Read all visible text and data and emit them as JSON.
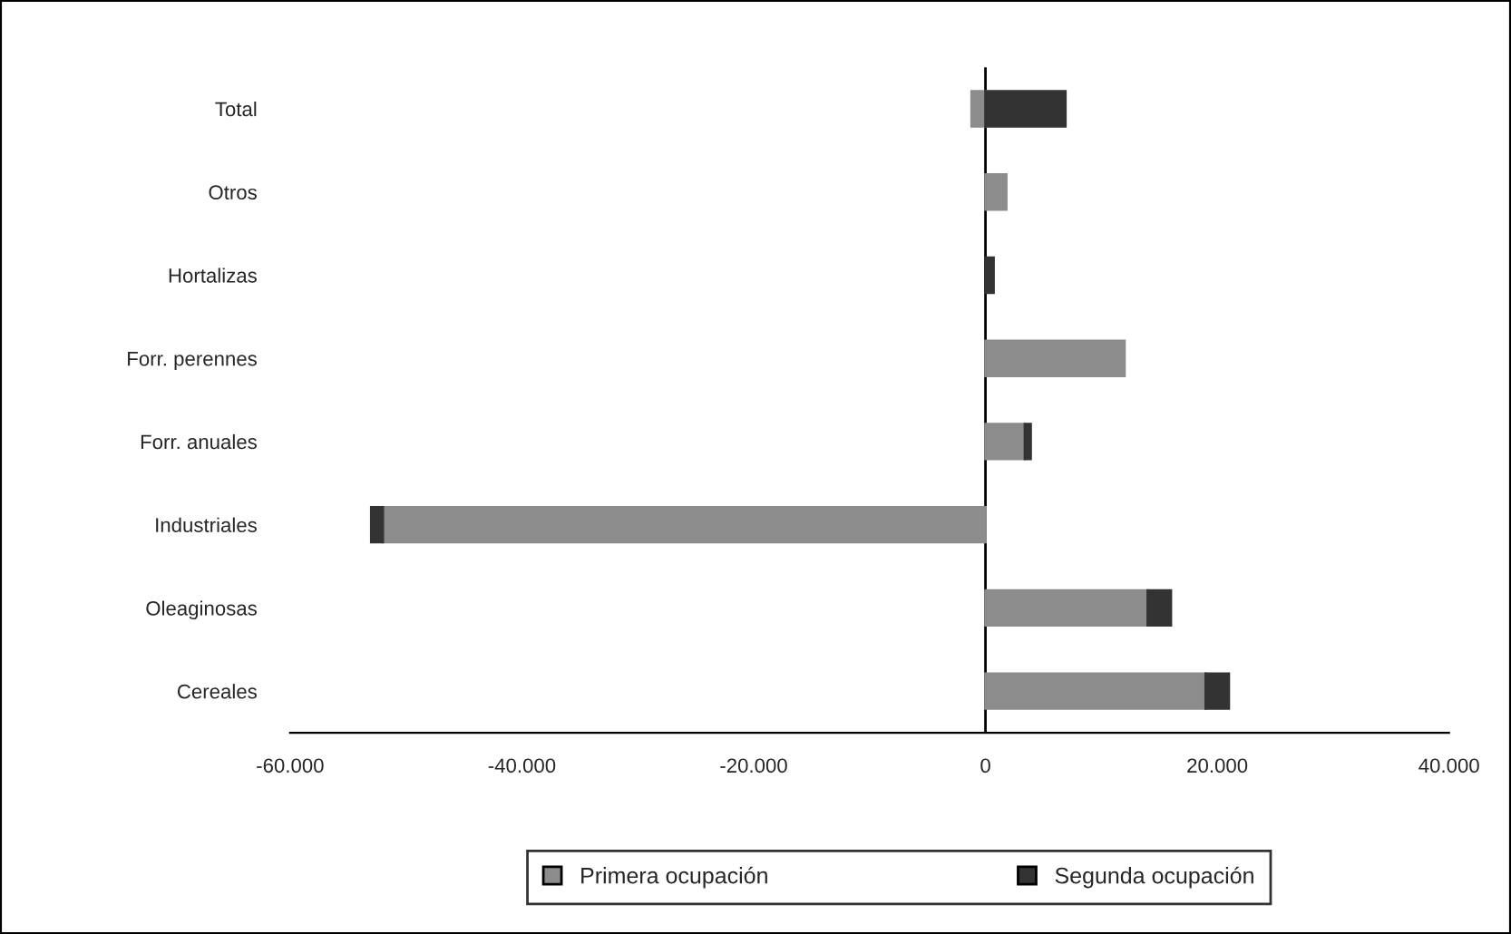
{
  "chart_data": {
    "type": "bar",
    "orientation": "horizontal",
    "stacked": true,
    "categories": [
      "Total",
      "Otros",
      "Hortalizas",
      "Forr. perennes",
      "Forr. anuales",
      "Industriales",
      "Oleaginosas",
      "Cereales"
    ],
    "series": [
      {
        "name": "Primera ocupación",
        "color": "#8c8c8c",
        "values": [
          -1200,
          1800,
          null,
          12000,
          3400,
          -52000,
          14000,
          19000
        ]
      },
      {
        "name": "Segunda ocupación",
        "color": "#333333",
        "values": [
          6900,
          null,
          700,
          null,
          500,
          -1000,
          2000,
          2000
        ]
      }
    ],
    "xlim": [
      -60000,
      40000
    ],
    "xticks": [
      {
        "value": -60000,
        "label": "-60.000"
      },
      {
        "value": -40000,
        "label": "-40.000"
      },
      {
        "value": -20000,
        "label": "-20.000"
      },
      {
        "value": 0,
        "label": "0"
      },
      {
        "value": 20000,
        "label": "20.000"
      },
      {
        "value": 40000,
        "label": "40.000"
      }
    ],
    "ref_lines": [
      {
        "axis": "x",
        "value": 0,
        "color": "#000000"
      }
    ],
    "grid": false,
    "legend": "bottom"
  }
}
